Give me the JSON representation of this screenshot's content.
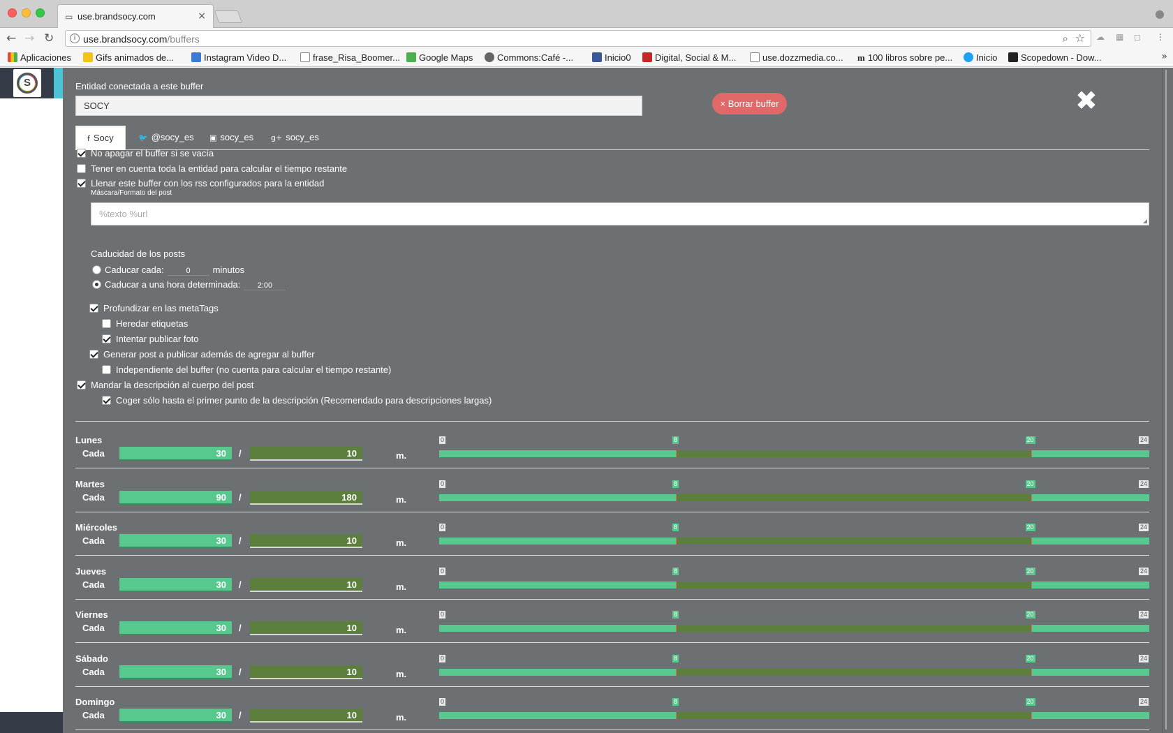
{
  "browser": {
    "tab_title": "use.brandsocy.com",
    "url_host": "use.brandsocy.com",
    "url_path": "/buffers",
    "bookmarks": [
      {
        "label": "Aplicaciones",
        "color": "#e04b3b"
      },
      {
        "label": "Gifs animados de...",
        "color": "#f2c418"
      },
      {
        "label": "Instagram Video D...",
        "color": "#3b7bd1"
      },
      {
        "label": "frase_Risa_Boomer...",
        "color": "#ffffff"
      },
      {
        "label": "Google Maps",
        "color": "#4caf50"
      },
      {
        "label": "Commons:Café -...",
        "color": "#666666"
      },
      {
        "label": "Inicio0",
        "color": "#3b5998"
      },
      {
        "label": "Digital, Social & M...",
        "color": "#c62828"
      },
      {
        "label": "use.dozzmedia.co...",
        "color": "#ffffff"
      },
      {
        "label": "100 libros sobre pe...",
        "color": "#f6f6f6"
      },
      {
        "label": "Inicio",
        "color": "#1da1f2"
      },
      {
        "label": "Scopedown - Dow...",
        "color": "#222222"
      }
    ]
  },
  "form": {
    "entity_label": "Entidad conectada a este buffer",
    "entity_value": "SOCY",
    "delete_button": "× Borrar buffer",
    "close_icon": "close-icon"
  },
  "tabs": [
    {
      "icon": "f",
      "label": "Socy"
    },
    {
      "icon": "t",
      "label": "@socy_es"
    },
    {
      "icon": "▣",
      "label": "socy_es"
    },
    {
      "icon": "g+",
      "label": "socy_es"
    }
  ],
  "options": {
    "no_apagar": {
      "label": "No apagar el buffer si se vacía",
      "checked": true
    },
    "tener_cuenta": {
      "label": "Tener en cuenta toda la entidad para calcular el tiempo restante",
      "checked": false
    },
    "llenar_rss": {
      "label": "Llenar este buffer con los rss configurados para la entidad",
      "checked": true
    },
    "mask_label": "Máscara/Formato del post",
    "mask_placeholder": "%texto %url",
    "caducidad_title": "Caducidad de los posts",
    "caducar_cada": {
      "label": "Caducar cada:",
      "value": "0",
      "unit": "minutos"
    },
    "caducar_hora": {
      "label": "Caducar a una hora determinada:",
      "value": "2:00"
    },
    "profundizar": {
      "label": "Profundizar en las metaTags",
      "checked": true
    },
    "heredar": {
      "label": "Heredar etiquetas",
      "checked": false
    },
    "intentar_foto": {
      "label": "Intentar publicar foto",
      "checked": true
    },
    "generar_post": {
      "label": "Generar post a publicar además de agregar al buffer",
      "checked": true
    },
    "independiente": {
      "label": "Independiente del buffer (no cuenta para calcular el tiempo restante)",
      "checked": false
    },
    "mandar_desc": {
      "label": "Mandar la descripción al cuerpo del post",
      "checked": true
    },
    "coger_solo": {
      "label": "Coger sólo hasta el primer punto de la descripción (Recomendado para descripciones largas)",
      "checked": true
    }
  },
  "schedule": {
    "cada_label": "Cada",
    "slash": "/",
    "unit": "m.",
    "range_max": 24,
    "days": [
      {
        "name": "Lunes",
        "val1": "30",
        "val2": "10",
        "start": "8",
        "end": "20"
      },
      {
        "name": "Martes",
        "val1": "90",
        "val2": "180",
        "start": "8",
        "end": "20"
      },
      {
        "name": "Miércoles",
        "val1": "30",
        "val2": "10",
        "start": "8",
        "end": "20"
      },
      {
        "name": "Jueves",
        "val1": "30",
        "val2": "10",
        "start": "8",
        "end": "20"
      },
      {
        "name": "Viernes",
        "val1": "30",
        "val2": "10",
        "start": "8",
        "end": "20"
      },
      {
        "name": "Sábado",
        "val1": "30",
        "val2": "10",
        "start": "8",
        "end": "20"
      },
      {
        "name": "Domingo",
        "val1": "30",
        "val2": "10",
        "start": "8",
        "end": "20"
      }
    ],
    "tick_min": "0",
    "tick_max": "24"
  }
}
